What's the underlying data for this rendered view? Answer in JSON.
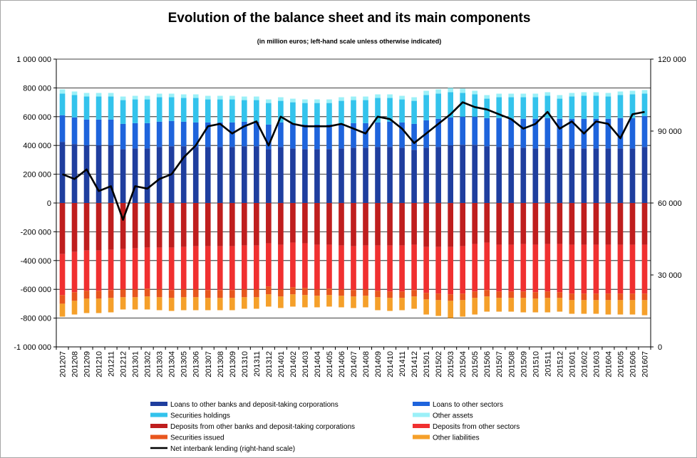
{
  "chart_data": {
    "type": "bar",
    "title": "Evolution of the balance sheet and its main components",
    "subtitle": "(in million euros; left-hand scale unless otherwise indicated)",
    "stacked": true,
    "categories": [
      "201207",
      "201208",
      "201209",
      "201210",
      "201211",
      "201212",
      "201301",
      "201302",
      "201303",
      "201304",
      "201305",
      "201306",
      "201307",
      "201308",
      "201309",
      "201310",
      "201311",
      "201312",
      "201401",
      "201402",
      "201403",
      "201404",
      "201405",
      "201406",
      "201407",
      "201408",
      "201409",
      "201410",
      "201411",
      "201412",
      "201501",
      "201502",
      "201503",
      "201504",
      "201505",
      "201506",
      "201507",
      "201508",
      "201509",
      "201510",
      "201511",
      "201512",
      "201601",
      "201602",
      "201603",
      "201604",
      "201605",
      "201606",
      "201607"
    ],
    "left_axis": {
      "ylim": [
        -1000000,
        1000000
      ],
      "ticks": [
        1000000,
        800000,
        600000,
        400000,
        200000,
        0,
        -200000,
        -400000,
        -600000,
        -800000,
        -1000000
      ],
      "tick_labels": [
        "1 000 000",
        "800 000",
        "600 000",
        "400 000",
        "200 000",
        "0",
        "-200 000",
        "-400 000",
        "-600 000",
        "-800 000",
        "-1 000 000"
      ]
    },
    "right_axis": {
      "ylim": [
        0,
        120000
      ],
      "ticks": [
        120000,
        90000,
        60000,
        30000,
        0
      ],
      "tick_labels": [
        "120 000",
        "90 000",
        "60 000",
        "30 000",
        "0"
      ]
    },
    "grid": "horizontal",
    "legend_position": "bottom",
    "series": [
      {
        "name": "Loans to other banks and deposit-taking corporations",
        "color": "#1F3E9E",
        "axis": "left",
        "values": [
          425000,
          410000,
          400000,
          400000,
          400000,
          375000,
          380000,
          380000,
          390000,
          395000,
          395000,
          390000,
          390000,
          390000,
          390000,
          395000,
          395000,
          375000,
          390000,
          380000,
          375000,
          375000,
          375000,
          380000,
          385000,
          385000,
          390000,
          390000,
          385000,
          370000,
          385000,
          390000,
          400000,
          405000,
          405000,
          395000,
          390000,
          385000,
          385000,
          380000,
          385000,
          380000,
          380000,
          380000,
          380000,
          380000,
          380000,
          380000,
          390000
        ]
      },
      {
        "name": "Loans to other sectors",
        "color": "#1E64DC",
        "axis": "left",
        "values": [
          185000,
          185000,
          180000,
          180000,
          180000,
          175000,
          175000,
          175000,
          175000,
          175000,
          170000,
          170000,
          170000,
          170000,
          170000,
          170000,
          170000,
          170000,
          170000,
          170000,
          170000,
          170000,
          170000,
          170000,
          170000,
          170000,
          170000,
          175000,
          175000,
          180000,
          190000,
          195000,
          195000,
          195000,
          195000,
          195000,
          200000,
          200000,
          200000,
          205000,
          205000,
          205000,
          205000,
          205000,
          205000,
          205000,
          210000,
          210000,
          215000
        ]
      },
      {
        "name": "Securities holdings",
        "color": "#33C3EC",
        "axis": "left",
        "values": [
          150000,
          155000,
          160000,
          160000,
          160000,
          165000,
          165000,
          165000,
          170000,
          165000,
          165000,
          170000,
          160000,
          160000,
          160000,
          150000,
          150000,
          150000,
          150000,
          150000,
          150000,
          150000,
          150000,
          160000,
          160000,
          160000,
          170000,
          165000,
          160000,
          160000,
          175000,
          175000,
          175000,
          165000,
          155000,
          135000,
          145000,
          150000,
          150000,
          150000,
          155000,
          140000,
          155000,
          160000,
          160000,
          155000,
          160000,
          165000,
          155000
        ]
      },
      {
        "name": "Other assets",
        "color": "#9BF0F8",
        "axis": "left",
        "values": [
          30000,
          25000,
          25000,
          25000,
          25000,
          25000,
          25000,
          25000,
          25000,
          25000,
          25000,
          25000,
          25000,
          25000,
          25000,
          25000,
          25000,
          25000,
          25000,
          25000,
          25000,
          25000,
          25000,
          25000,
          25000,
          25000,
          25000,
          25000,
          25000,
          25000,
          30000,
          30000,
          30000,
          30000,
          25000,
          25000,
          25000,
          25000,
          25000,
          25000,
          25000,
          25000,
          25000,
          25000,
          25000,
          25000,
          25000,
          25000,
          25000
        ]
      },
      {
        "name": "Deposits from other banks and deposit-taking corporations",
        "color": "#BF1E1E",
        "axis": "left",
        "values": [
          -355000,
          -340000,
          -330000,
          -330000,
          -325000,
          -320000,
          -315000,
          -310000,
          -310000,
          -310000,
          -305000,
          -300000,
          -300000,
          -300000,
          -300000,
          -295000,
          -295000,
          -280000,
          -290000,
          -275000,
          -280000,
          -290000,
          -290000,
          -295000,
          -300000,
          -295000,
          -295000,
          -295000,
          -295000,
          -290000,
          -305000,
          -305000,
          -305000,
          -300000,
          -285000,
          -275000,
          -290000,
          -290000,
          -285000,
          -290000,
          -285000,
          -285000,
          -290000,
          -290000,
          -290000,
          -290000,
          -290000,
          -290000,
          -290000
        ]
      },
      {
        "name": "Deposits from other sectors",
        "color": "#F03030",
        "axis": "left",
        "values": [
          -285000,
          -280000,
          -280000,
          -280000,
          -280000,
          -280000,
          -285000,
          -285000,
          -290000,
          -295000,
          -295000,
          -300000,
          -305000,
          -305000,
          -305000,
          -305000,
          -305000,
          -300000,
          -310000,
          -310000,
          -310000,
          -310000,
          -305000,
          -305000,
          -305000,
          -305000,
          -315000,
          -320000,
          -320000,
          -315000,
          -320000,
          -325000,
          -330000,
          -330000,
          -330000,
          -330000,
          -325000,
          -325000,
          -330000,
          -330000,
          -330000,
          -335000,
          -340000,
          -340000,
          -340000,
          -340000,
          -340000,
          -340000,
          -340000
        ]
      },
      {
        "name": "Securities issued",
        "color": "#E8561E",
        "axis": "left",
        "values": [
          -60000,
          -60000,
          -55000,
          -55000,
          -55000,
          -55000,
          -55000,
          -55000,
          -55000,
          -55000,
          -55000,
          -55000,
          -55000,
          -55000,
          -55000,
          -55000,
          -55000,
          -55000,
          -50000,
          -50000,
          -50000,
          -45000,
          -45000,
          -45000,
          -45000,
          -45000,
          -45000,
          -45000,
          -45000,
          -45000,
          -45000,
          -45000,
          -45000,
          -45000,
          -45000,
          -45000,
          -45000,
          -45000,
          -45000,
          -45000,
          -45000,
          -40000,
          -45000,
          -45000,
          -45000,
          -45000,
          -45000,
          -45000,
          -45000
        ]
      },
      {
        "name": "Other liabilities",
        "color": "#F5A02A",
        "axis": "left",
        "values": [
          -90000,
          -95000,
          -100000,
          -100000,
          -100000,
          -85000,
          -85000,
          -90000,
          -90000,
          -90000,
          -90000,
          -90000,
          -85000,
          -85000,
          -85000,
          -80000,
          -80000,
          -85000,
          -80000,
          -85000,
          -85000,
          -80000,
          -80000,
          -80000,
          -80000,
          -80000,
          -90000,
          -90000,
          -85000,
          -85000,
          -105000,
          -110000,
          -120000,
          -115000,
          -115000,
          -105000,
          -95000,
          -95000,
          -100000,
          -95000,
          -100000,
          -95000,
          -95000,
          -95000,
          -95000,
          -100000,
          -100000,
          -100000,
          -105000
        ]
      },
      {
        "name": "Net interbank lending (right-hand scale)",
        "color": "#000000",
        "axis": "right",
        "type": "line",
        "values": [
          72000,
          70000,
          74000,
          65000,
          67000,
          53000,
          67000,
          66000,
          70000,
          72000,
          79000,
          84000,
          92000,
          93000,
          89000,
          92000,
          94000,
          84000,
          96000,
          93000,
          92000,
          92000,
          92000,
          93000,
          91000,
          89000,
          96000,
          95000,
          91000,
          85000,
          89000,
          93000,
          97000,
          102000,
          100000,
          99000,
          97000,
          95000,
          91000,
          93000,
          98000,
          91000,
          94000,
          89000,
          94000,
          93000,
          87000,
          97000,
          98000
        ]
      }
    ]
  },
  "legend": {
    "items": [
      {
        "label": "Loans to other banks and deposit-taking corporations",
        "color": "#1F3E9E",
        "kind": "box"
      },
      {
        "label": "Loans to other sectors",
        "color": "#1E64DC",
        "kind": "box"
      },
      {
        "label": "Securities holdings",
        "color": "#33C3EC",
        "kind": "box"
      },
      {
        "label": "Other assets",
        "color": "#9BF0F8",
        "kind": "box"
      },
      {
        "label": "Deposits from other banks and deposit-taking corporations",
        "color": "#BF1E1E",
        "kind": "box"
      },
      {
        "label": "Deposits from other sectors",
        "color": "#F03030",
        "kind": "box"
      },
      {
        "label": "Securities issued",
        "color": "#E8561E",
        "kind": "box"
      },
      {
        "label": "Other liabilities",
        "color": "#F5A02A",
        "kind": "box"
      },
      {
        "label": "Net interbank lending (right-hand scale)",
        "color": "#000000",
        "kind": "line"
      }
    ]
  }
}
